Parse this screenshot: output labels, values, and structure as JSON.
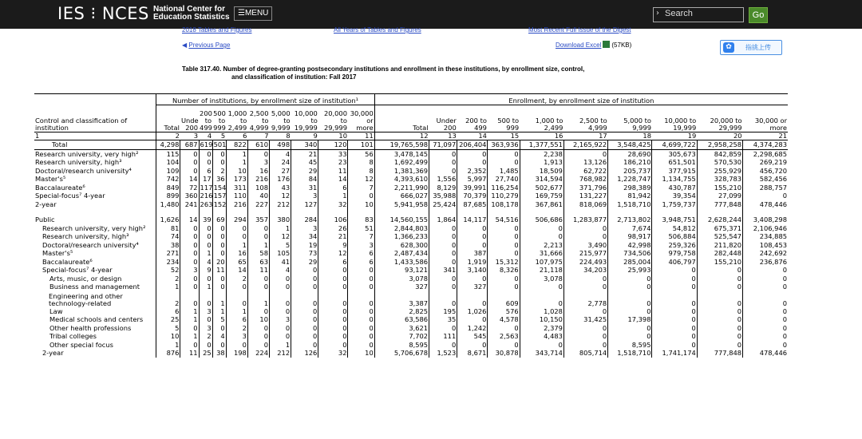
{
  "header": {
    "logo": "IES ⁝ NCES",
    "center_line1": "National Center for",
    "center_line2": "Education Statistics",
    "menu_label": "☰MENU",
    "search_placeholder": "Search",
    "go_label": "Go"
  },
  "links": {
    "figures": "2018 Tables and Figures",
    "all_years": "All Years of Tables and Figures",
    "recent": "Most Recent Full Issue of the Digest",
    "previous": "Previous Page",
    "download": "Download Excel",
    "download_size": "(57KB)",
    "share": "指挑上传"
  },
  "table_title": {
    "line1": "Table 317.40.   Number of degree-granting postsecondary institutions and enrollment in these institutions, by enrollment size, control,",
    "line2": "and classification of institution: Fall 2017"
  },
  "table": {
    "label_header": "Control and classification of institution",
    "institutions_header": "Number of institutions, by enrollment size of institution¹",
    "enrollment_header": "Enrollment, by enrollment size of institution",
    "inst_columns": [
      "Total",
      "Under 200",
      "200 to 499",
      "500 to 999",
      "1,000 to 2,499",
      "2,500 to 4,999",
      "5,000 to 9,999",
      "10,000 to 19,999",
      "20,000 to 29,999",
      "30,000 or more"
    ],
    "enr_columns": [
      "Total",
      "Under 200",
      "200 to 499",
      "500 to 999",
      "1,000 to 2,499",
      "2,500 to 4,999",
      "5,000 to 9,999",
      "10,000 to 19,999",
      "20,000 to 29,999",
      "30,000 or more"
    ],
    "column_numbers": [
      "1",
      "2",
      "3",
      "4",
      "5",
      "6",
      "7",
      "8",
      "9",
      "10",
      "11",
      "12",
      "13",
      "14",
      "15",
      "16",
      "17",
      "18",
      "19",
      "20",
      "21"
    ],
    "total_row": {
      "label": "Total",
      "values": [
        "4,298",
        "687",
        "619",
        "501",
        "822",
        "610",
        "498",
        "340",
        "120",
        "101",
        "19,765,598",
        "71,097",
        "206,404",
        "363,936",
        "1,377,551",
        "2,165,922",
        "3,548,425",
        "4,699,722",
        "2,958,258",
        "4,374,283"
      ]
    },
    "rows": [
      {
        "label": "Research university, very high²",
        "indent": 0,
        "values": [
          "115",
          "0",
          "0",
          "0",
          "1",
          "0",
          "4",
          "21",
          "33",
          "56",
          "3,478,145",
          "0",
          "0",
          "0",
          "2,238",
          "0",
          "28,690",
          "305,673",
          "842,859",
          "2,298,685"
        ]
      },
      {
        "label": "Research university, high³",
        "indent": 0,
        "values": [
          "104",
          "0",
          "0",
          "0",
          "1",
          "3",
          "24",
          "45",
          "23",
          "8",
          "1,692,499",
          "0",
          "0",
          "0",
          "1,913",
          "13,126",
          "186,210",
          "651,501",
          "570,530",
          "269,219"
        ]
      },
      {
        "label": "Doctoral/research university⁴",
        "indent": 0,
        "values": [
          "109",
          "0",
          "6",
          "2",
          "10",
          "16",
          "27",
          "29",
          "11",
          "8",
          "1,381,369",
          "0",
          "2,352",
          "1,485",
          "18,509",
          "62,722",
          "205,737",
          "377,915",
          "255,929",
          "456,720"
        ]
      },
      {
        "label": "Master's⁵",
        "indent": 0,
        "values": [
          "742",
          "14",
          "17",
          "36",
          "173",
          "216",
          "176",
          "84",
          "14",
          "12",
          "4,393,610",
          "1,556",
          "5,997",
          "27,740",
          "314,594",
          "768,982",
          "1,228,747",
          "1,134,755",
          "328,783",
          "582,456"
        ]
      },
      {
        "label": "Baccalaureate⁶",
        "indent": 0,
        "values": [
          "849",
          "72",
          "117",
          "154",
          "311",
          "108",
          "43",
          "31",
          "6",
          "7",
          "2,211,990",
          "8,129",
          "39,991",
          "116,254",
          "502,677",
          "371,796",
          "298,389",
          "430,787",
          "155,210",
          "288,757"
        ]
      },
      {
        "label": "Special-focus⁷ 4-year",
        "indent": 0,
        "values": [
          "899",
          "360",
          "216",
          "157",
          "110",
          "40",
          "12",
          "3",
          "1",
          "0",
          "666,027",
          "35,988",
          "70,379",
          "110,279",
          "169,759",
          "131,227",
          "81,942",
          "39,354",
          "27,099",
          "0"
        ]
      },
      {
        "label": "2-year",
        "indent": 0,
        "values": [
          "1,480",
          "241",
          "263",
          "152",
          "216",
          "227",
          "212",
          "127",
          "32",
          "10",
          "5,941,958",
          "25,424",
          "87,685",
          "108,178",
          "367,861",
          "818,069",
          "1,518,710",
          "1,759,737",
          "777,848",
          "478,446"
        ]
      },
      {
        "label": "",
        "spacer": true,
        "values": []
      },
      {
        "label": "Public",
        "indent": 0,
        "values": [
          "1,626",
          "14",
          "39",
          "69",
          "294",
          "357",
          "380",
          "284",
          "106",
          "83",
          "14,560,155",
          "1,864",
          "14,117",
          "54,516",
          "506,686",
          "1,283,877",
          "2,713,802",
          "3,948,751",
          "2,628,244",
          "3,408,298"
        ]
      },
      {
        "label": "Research university, very high²",
        "indent": 1,
        "values": [
          "81",
          "0",
          "0",
          "0",
          "0",
          "0",
          "1",
          "3",
          "26",
          "51",
          "2,844,803",
          "0",
          "0",
          "0",
          "0",
          "0",
          "7,674",
          "54,812",
          "675,371",
          "2,106,946"
        ]
      },
      {
        "label": "Research university, high³",
        "indent": 1,
        "values": [
          "74",
          "0",
          "0",
          "0",
          "0",
          "0",
          "12",
          "34",
          "21",
          "7",
          "1,366,233",
          "0",
          "0",
          "0",
          "0",
          "0",
          "98,917",
          "506,884",
          "525,547",
          "234,885"
        ]
      },
      {
        "label": "Doctoral/research university⁴",
        "indent": 1,
        "values": [
          "38",
          "0",
          "0",
          "0",
          "1",
          "1",
          "5",
          "19",
          "9",
          "3",
          "628,300",
          "0",
          "0",
          "0",
          "2,213",
          "3,490",
          "42,998",
          "259,326",
          "211,820",
          "108,453"
        ]
      },
      {
        "label": "Master's⁵",
        "indent": 1,
        "values": [
          "271",
          "0",
          "1",
          "0",
          "16",
          "58",
          "105",
          "73",
          "12",
          "6",
          "2,487,434",
          "0",
          "387",
          "0",
          "31,666",
          "215,977",
          "734,506",
          "979,758",
          "282,448",
          "242,692"
        ]
      },
      {
        "label": "Baccalaureate⁶",
        "indent": 1,
        "values": [
          "234",
          "0",
          "4",
          "20",
          "65",
          "63",
          "41",
          "29",
          "6",
          "6",
          "1,433,586",
          "0",
          "1,919",
          "15,312",
          "107,975",
          "224,493",
          "285,004",
          "406,797",
          "155,210",
          "236,876"
        ]
      },
      {
        "label": "Special-focus⁷ 4-year",
        "indent": 1,
        "values": [
          "52",
          "3",
          "9",
          "11",
          "14",
          "11",
          "4",
          "0",
          "0",
          "0",
          "93,121",
          "341",
          "3,140",
          "8,326",
          "21,118",
          "34,203",
          "25,993",
          "0",
          "0",
          "0"
        ]
      },
      {
        "label": "Arts, music, or design",
        "indent": 2,
        "values": [
          "2",
          "0",
          "0",
          "0",
          "2",
          "0",
          "0",
          "0",
          "0",
          "0",
          "3,078",
          "0",
          "0",
          "0",
          "3,078",
          "0",
          "0",
          "0",
          "0",
          "0"
        ]
      },
      {
        "label": "Business and management",
        "indent": 2,
        "values": [
          "1",
          "0",
          "1",
          "0",
          "0",
          "0",
          "0",
          "0",
          "0",
          "0",
          "327",
          "0",
          "327",
          "0",
          "0",
          "0",
          "0",
          "0",
          "0",
          "0"
        ]
      },
      {
        "label": "Engineering and other technology-related",
        "indent": 2,
        "tall": true,
        "values": [
          "2",
          "0",
          "0",
          "1",
          "0",
          "1",
          "0",
          "0",
          "0",
          "0",
          "3,387",
          "0",
          "0",
          "609",
          "0",
          "2,778",
          "0",
          "0",
          "0",
          "0"
        ]
      },
      {
        "label": "Law",
        "indent": 2,
        "values": [
          "6",
          "1",
          "3",
          "1",
          "1",
          "0",
          "0",
          "0",
          "0",
          "0",
          "2,825",
          "195",
          "1,026",
          "576",
          "1,028",
          "0",
          "0",
          "0",
          "0",
          "0"
        ]
      },
      {
        "label": "Medical schools and centers",
        "indent": 2,
        "values": [
          "25",
          "1",
          "0",
          "5",
          "6",
          "10",
          "3",
          "0",
          "0",
          "0",
          "63,586",
          "35",
          "0",
          "4,578",
          "10,150",
          "31,425",
          "17,398",
          "0",
          "0",
          "0"
        ]
      },
      {
        "label": "Other health professions",
        "indent": 2,
        "values": [
          "5",
          "0",
          "3",
          "0",
          "2",
          "0",
          "0",
          "0",
          "0",
          "0",
          "3,621",
          "0",
          "1,242",
          "0",
          "2,379",
          "0",
          "0",
          "0",
          "0",
          "0"
        ]
      },
      {
        "label": "Tribal colleges",
        "indent": 2,
        "values": [
          "10",
          "1",
          "2",
          "4",
          "3",
          "0",
          "0",
          "0",
          "0",
          "0",
          "7,702",
          "111",
          "545",
          "2,563",
          "4,483",
          "0",
          "0",
          "0",
          "0",
          "0"
        ]
      },
      {
        "label": "Other special focus",
        "indent": 2,
        "values": [
          "1",
          "0",
          "0",
          "0",
          "0",
          "0",
          "1",
          "0",
          "0",
          "0",
          "8,595",
          "0",
          "0",
          "0",
          "0",
          "0",
          "8,595",
          "0",
          "0",
          "0"
        ]
      },
      {
        "label": "2-year",
        "indent": 1,
        "values": [
          "876",
          "11",
          "25",
          "38",
          "198",
          "224",
          "212",
          "126",
          "32",
          "10",
          "5,706,678",
          "1,523",
          "8,671",
          "30,878",
          "343,714",
          "805,714",
          "1,518,710",
          "1,741,174",
          "777,848",
          "478,446"
        ]
      }
    ]
  }
}
